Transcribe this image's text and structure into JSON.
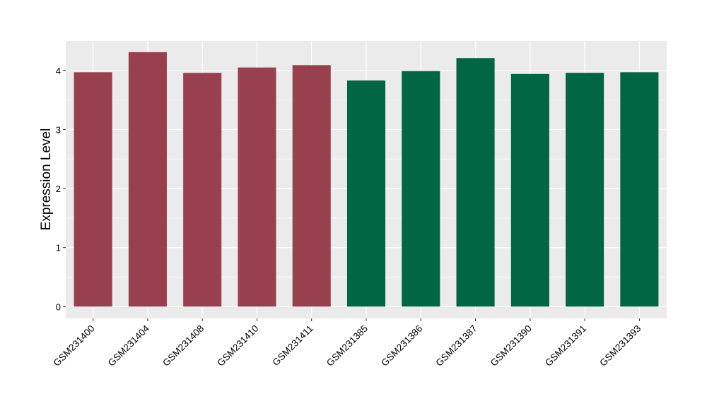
{
  "chart_data": {
    "type": "bar",
    "title": "",
    "xlabel": "",
    "ylabel": "Expression Level",
    "ylim": [
      -0.2,
      4.5
    ],
    "yticks": [
      0,
      1,
      2,
      3,
      4
    ],
    "grid": true,
    "legend": "none",
    "colors": {
      "panel_background": "#ebebeb",
      "grid": "#ffffff",
      "axis_text": "#000000",
      "group_a": "#99404f",
      "group_b": "#016644"
    },
    "categories": [
      "GSM231400",
      "GSM231404",
      "GSM231408",
      "GSM231410",
      "GSM231411",
      "GSM231385",
      "GSM231386",
      "GSM231387",
      "GSM231390",
      "GSM231391",
      "GSM231393"
    ],
    "values": [
      3.97,
      4.31,
      3.96,
      4.05,
      4.09,
      3.83,
      3.99,
      4.21,
      3.94,
      3.96,
      3.97
    ],
    "bar_colors": [
      "#99404f",
      "#99404f",
      "#99404f",
      "#99404f",
      "#99404f",
      "#016644",
      "#016644",
      "#016644",
      "#016644",
      "#016644",
      "#016644"
    ]
  }
}
